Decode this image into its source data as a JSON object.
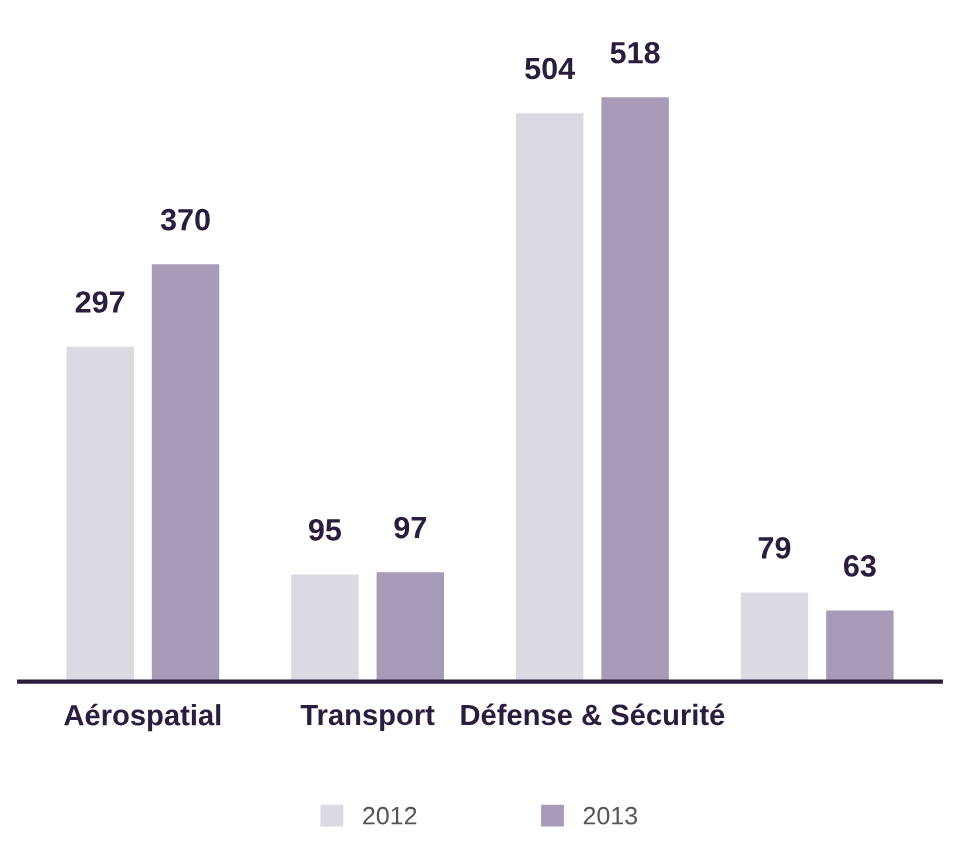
{
  "chart_data": {
    "type": "bar",
    "categories": [
      "Aérospatial",
      "Transport",
      "Défense & Sécurité",
      null
    ],
    "series": [
      {
        "name": "2012",
        "color": "#dcd9e3",
        "values": [
          297,
          95,
          504,
          79
        ]
      },
      {
        "name": "2013",
        "color": "#a79bb8",
        "values": [
          370,
          97,
          518,
          63
        ]
      }
    ],
    "data_labels": true,
    "legend": "bottom",
    "grid": false
  }
}
